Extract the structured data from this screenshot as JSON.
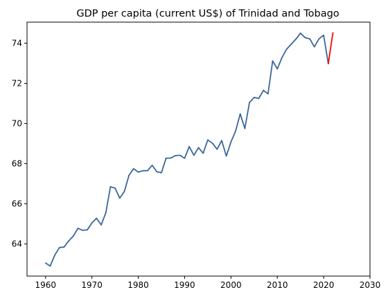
{
  "chart_data": {
    "type": "line",
    "title": "GDP per capita (current US$) of Trinidad and Tobago",
    "xlabel": "",
    "ylabel": "",
    "xlim": [
      1956,
      2030
    ],
    "ylim": [
      62.4,
      75.05
    ],
    "xticks": [
      1960,
      1970,
      1980,
      1990,
      2000,
      2010,
      2020,
      2030
    ],
    "yticks": [
      64,
      66,
      68,
      70,
      72,
      74
    ],
    "grid": false,
    "colors": {
      "series": "#3a6699",
      "forecast": "#ff0000"
    },
    "series": [
      {
        "x": [
          1960,
          1961,
          1962,
          1963,
          1964,
          1965,
          1966,
          1967,
          1968,
          1969,
          1970,
          1971,
          1972,
          1973,
          1974,
          1975,
          1976,
          1977,
          1978,
          1979,
          1980,
          1981,
          1982,
          1983,
          1984,
          1985,
          1986,
          1987,
          1988,
          1989,
          1990,
          1991,
          1992,
          1993,
          1994,
          1995,
          1996,
          1997,
          1998,
          1999,
          2000,
          2001,
          2002,
          2003,
          2004,
          2005,
          2006,
          2007,
          2008,
          2009,
          2010,
          2011,
          2012,
          2013,
          2014,
          2015,
          2016,
          2017,
          2018,
          2019,
          2020,
          2021
        ],
        "y": [
          63.05,
          62.9,
          63.45,
          63.82,
          63.85,
          64.15,
          64.4,
          64.78,
          64.68,
          64.7,
          65.05,
          65.28,
          64.95,
          65.55,
          66.85,
          66.78,
          66.28,
          66.62,
          67.42,
          67.75,
          67.58,
          67.65,
          67.65,
          67.92,
          67.6,
          67.55,
          68.27,
          68.28,
          68.4,
          68.42,
          68.27,
          68.85,
          68.42,
          68.8,
          68.52,
          69.18,
          69.02,
          68.72,
          69.15,
          68.38,
          69.08,
          69.62,
          70.48,
          69.75,
          71.05,
          71.3,
          71.25,
          71.65,
          71.48,
          73.12,
          72.72,
          73.28,
          73.7,
          73.95,
          74.2,
          74.5,
          74.28,
          74.22,
          73.82,
          74.22,
          74.4,
          72.98
        ]
      },
      {
        "x": [
          2021,
          2022
        ],
        "y": [
          72.98,
          74.52
        ]
      }
    ]
  }
}
